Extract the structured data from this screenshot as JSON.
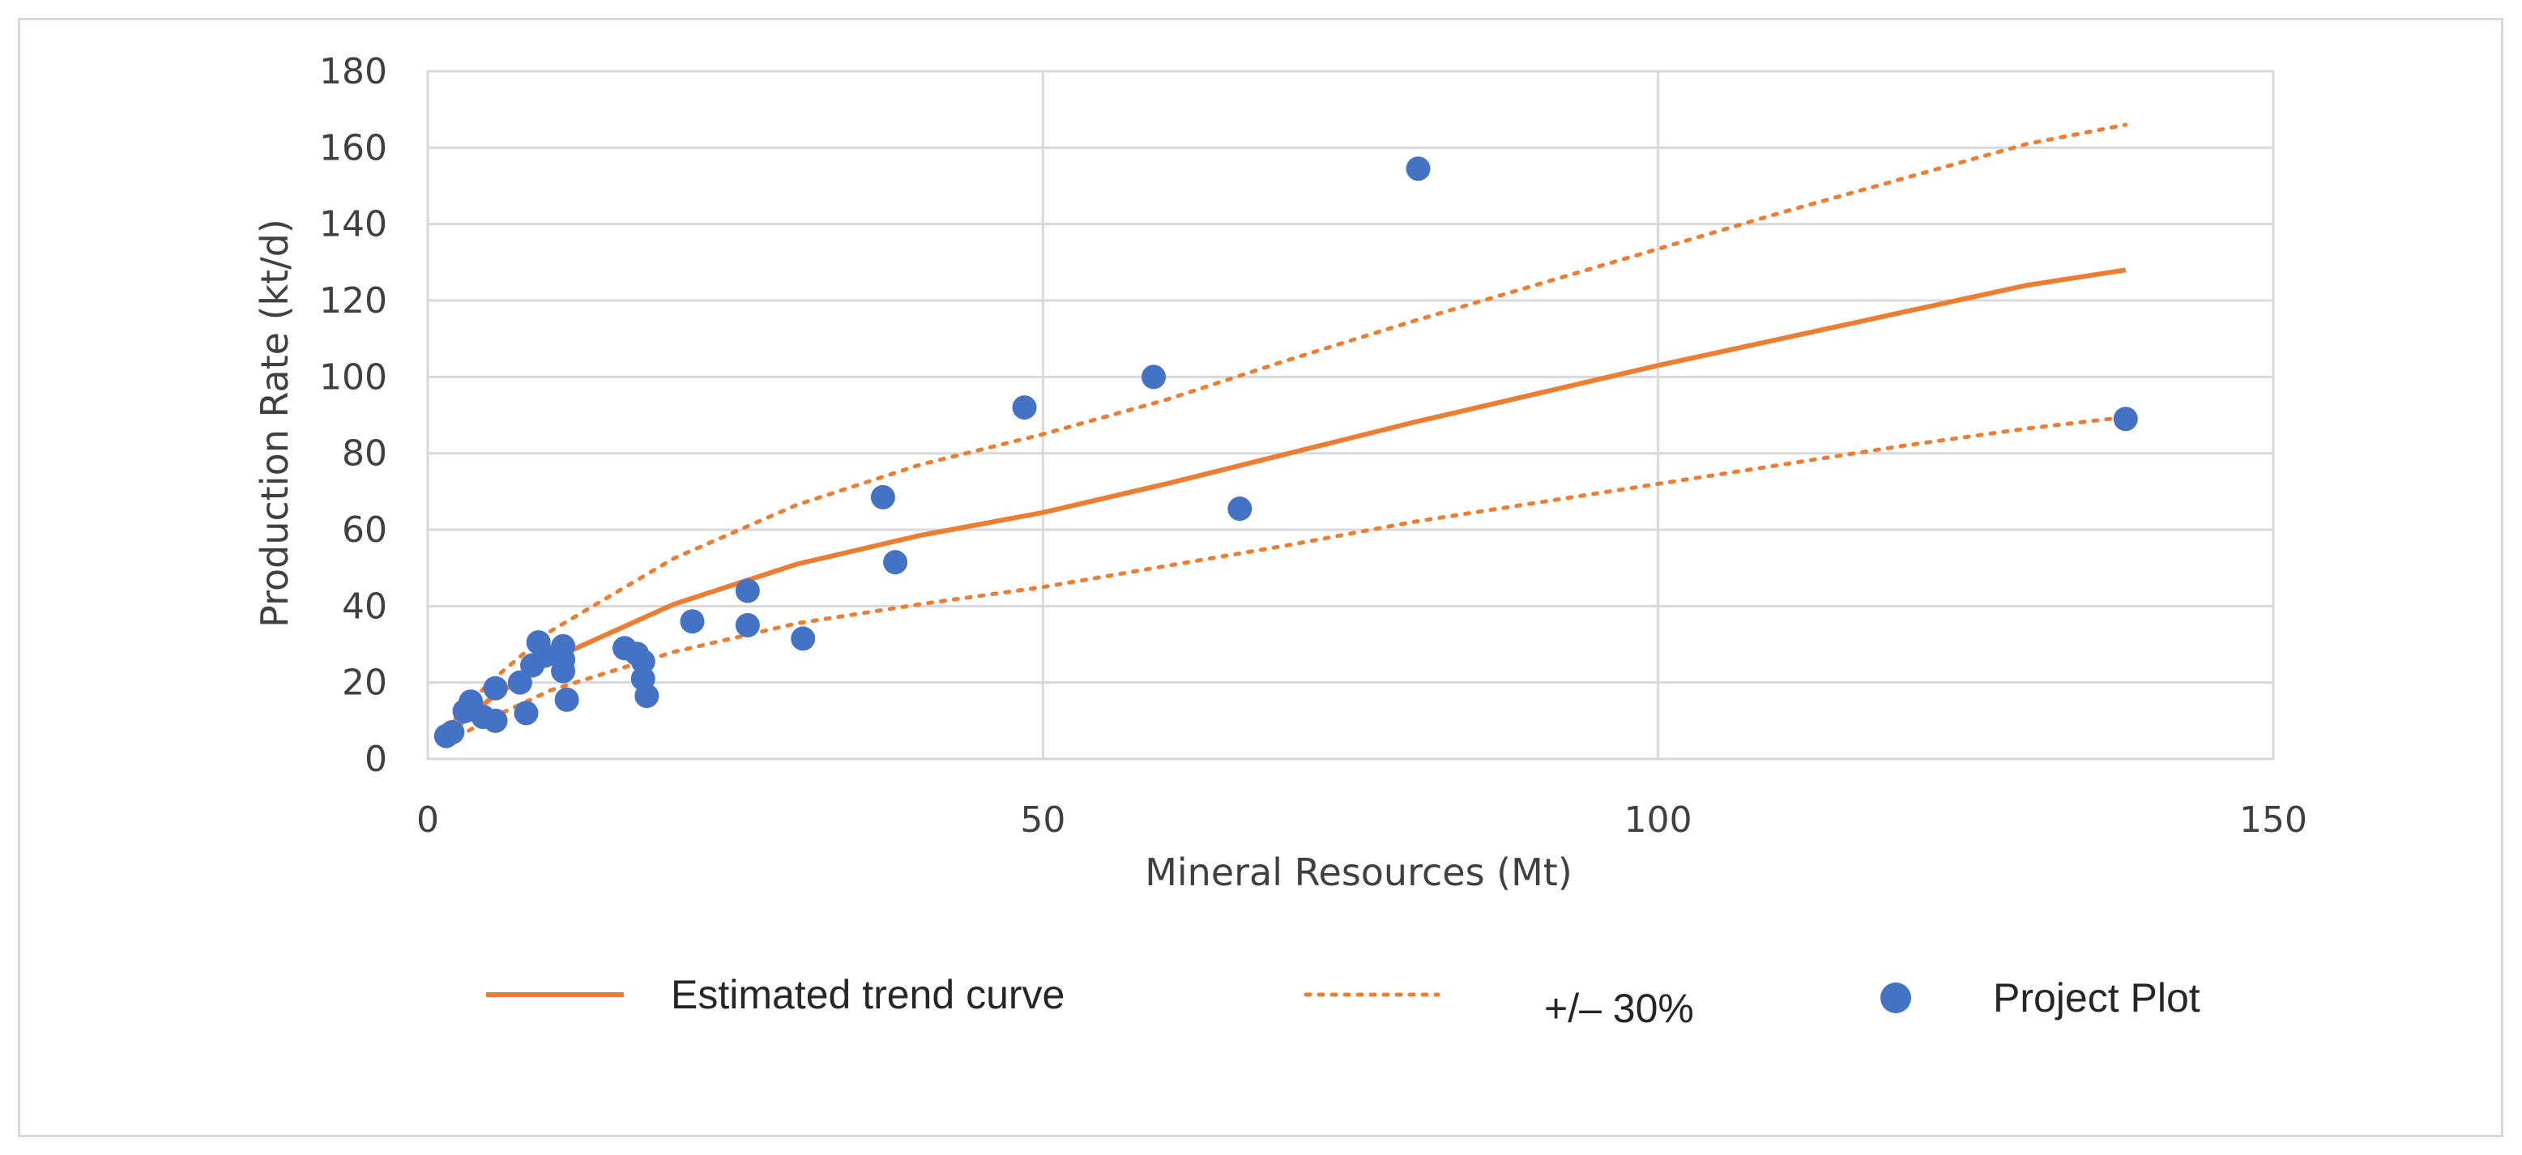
{
  "chart_data": {
    "type": "scatter",
    "title": "",
    "xlabel": "Mineral Resources (Mt)",
    "ylabel": "Production Rate (kt/d)",
    "xlim": [
      0,
      150
    ],
    "ylim": [
      0,
      180
    ],
    "x_ticks": [
      0,
      50,
      100,
      150
    ],
    "y_ticks": [
      0,
      20,
      40,
      60,
      80,
      100,
      120,
      140,
      160,
      180
    ],
    "grid": true,
    "legend_position": "bottom",
    "colors": {
      "trend": "#ed7d31",
      "points": "#4472c4",
      "grid": "#d9d9d9",
      "plot_border": "#d9d9d9"
    },
    "series": [
      {
        "name": "Estimated trend curve",
        "style": "solid-line",
        "x": [
          1.5,
          5,
          10,
          20,
          30,
          40,
          50,
          60,
          70,
          80,
          90,
          100,
          110,
          120,
          130,
          138
        ],
        "y": [
          6.0,
          15.5,
          26.0,
          40.5,
          51.0,
          58.5,
          64.5,
          72.0,
          80.0,
          88.0,
          95.5,
          103.0,
          110.0,
          117.0,
          124.0,
          128.0
        ]
      },
      {
        "name": "+/– 30%",
        "style": "dotted-line",
        "x": [
          1.5,
          5,
          10,
          20,
          30,
          40,
          50,
          60,
          70,
          80,
          90,
          100,
          110,
          120,
          130,
          138
        ],
        "y": [
          8.0,
          20.0,
          33.5,
          52.5,
          66.5,
          77.0,
          85.0,
          94.0,
          104.5,
          114.5,
          124.0,
          133.5,
          143.0,
          152.0,
          161.0,
          166.0
        ]
      },
      {
        "name": "+/– 30% (lower)",
        "style": "dotted-line",
        "x": [
          1.5,
          5,
          10,
          20,
          30,
          40,
          50,
          60,
          70,
          80,
          90,
          100,
          110,
          120,
          130,
          138
        ],
        "y": [
          4.0,
          10.5,
          18.0,
          28.0,
          35.5,
          40.5,
          45.0,
          50.5,
          56.0,
          62.0,
          67.0,
          72.0,
          77.0,
          82.0,
          86.5,
          89.5
        ]
      },
      {
        "name": "Project Plot",
        "style": "markers",
        "x": [
          1.5,
          2.0,
          3.0,
          3.5,
          4.5,
          5.5,
          5.5,
          7.5,
          8.0,
          8.5,
          9.0,
          9.5,
          11.0,
          11.0,
          11.0,
          11.3,
          16.0,
          17.0,
          17.5,
          17.5,
          17.8,
          21.5,
          26.0,
          26.0,
          30.5,
          37.0,
          38.0,
          48.5,
          59.0,
          66.0,
          80.5,
          138.0
        ],
        "y": [
          6.0,
          7.0,
          12.5,
          15.0,
          11.0,
          10.0,
          18.5,
          20.0,
          12.0,
          24.5,
          30.5,
          27.0,
          23.0,
          26.0,
          29.5,
          15.5,
          29.0,
          27.5,
          25.5,
          21.0,
          16.5,
          36.0,
          35.0,
          44.0,
          31.5,
          68.5,
          51.5,
          92.0,
          100.0,
          65.5,
          154.5,
          89.0
        ]
      }
    ],
    "legend": [
      {
        "label": "Estimated trend curve",
        "style": "solid-line"
      },
      {
        "label": "+/– 30%",
        "style": "dotted-line"
      },
      {
        "label": "Project Plot",
        "style": "markers"
      }
    ]
  }
}
